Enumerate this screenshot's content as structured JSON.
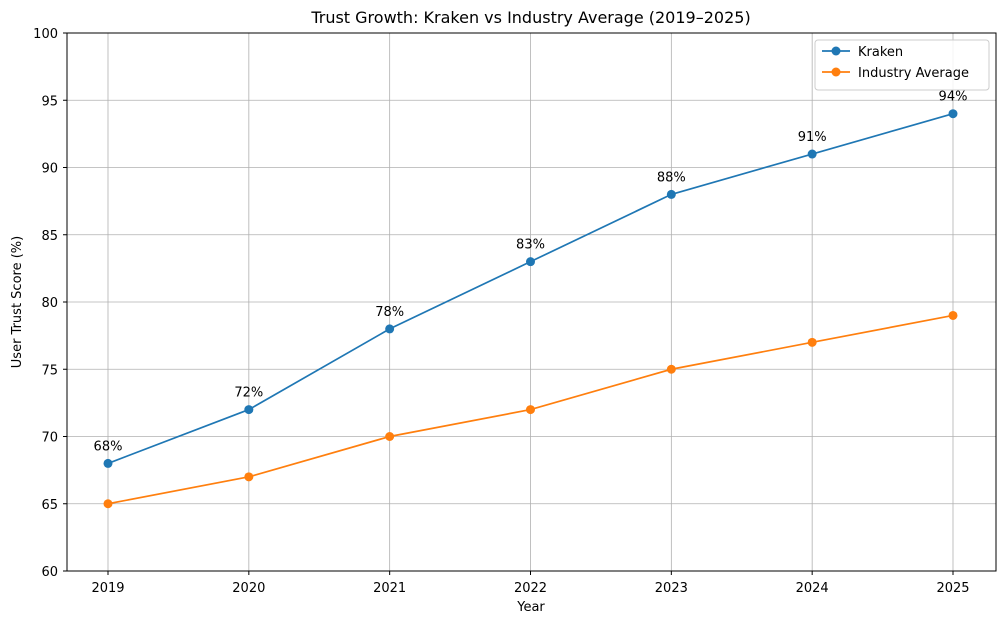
{
  "chart_data": {
    "type": "line",
    "title": "Trust Growth: Kraken vs Industry Average (2019–2025)",
    "xlabel": "Year",
    "ylabel": "User Trust Score (%)",
    "x": [
      "2019",
      "2020",
      "2021",
      "2022",
      "2023",
      "2024",
      "2025"
    ],
    "ylim": [
      60,
      100
    ],
    "yticks": [
      60,
      65,
      70,
      75,
      80,
      85,
      90,
      95,
      100
    ],
    "grid": true,
    "legend_position": "top-right",
    "series": [
      {
        "name": "Kraken",
        "color": "#1f77b4",
        "marker": "circle",
        "values": [
          68,
          72,
          78,
          83,
          88,
          91,
          94
        ],
        "data_labels": [
          "68%",
          "72%",
          "78%",
          "83%",
          "88%",
          "91%",
          "94%"
        ]
      },
      {
        "name": "Industry Average",
        "color": "#ff7f0e",
        "marker": "circle",
        "values": [
          65,
          67,
          70,
          72,
          75,
          77,
          79
        ]
      }
    ]
  }
}
